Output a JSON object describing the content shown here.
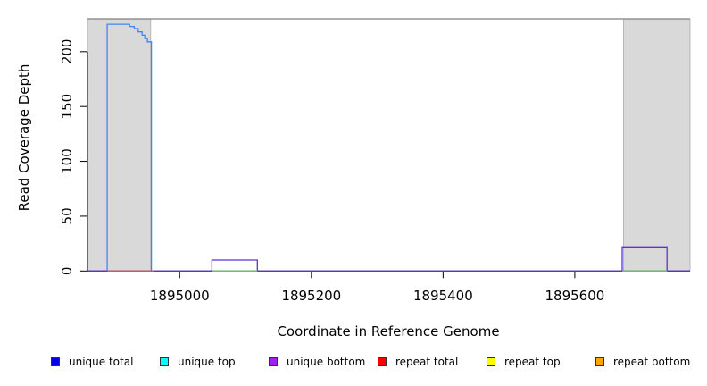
{
  "figure": {
    "ylabel": "Read Coverage Depth",
    "xlabel": "Coordinate in Reference Genome"
  },
  "legend": {
    "items": [
      {
        "label": "unique total",
        "color": "#0000EE"
      },
      {
        "label": "unique top",
        "color": "#00FFFF"
      },
      {
        "label": "unique bottom",
        "color": "#A020F0"
      },
      {
        "label": "repeat total",
        "color": "#FF0000"
      },
      {
        "label": "repeat top",
        "color": "#FFFF00"
      },
      {
        "label": "repeat bottom",
        "color": "#FFA500"
      }
    ]
  },
  "chart_data": {
    "type": "line",
    "title": "",
    "xlabel": "Coordinate in Reference Genome",
    "ylabel": "Read Coverage Depth",
    "xlim": [
      1894860,
      1895775
    ],
    "ylim": [
      0,
      230
    ],
    "x_ticks": [
      1895000,
      1895200,
      1895400,
      1895600
    ],
    "y_ticks": [
      0,
      50,
      100,
      150,
      200
    ],
    "grid": false,
    "legend_position": "bottom",
    "axis_color": "#000000",
    "shaded_regions": [
      {
        "x_start": 1894860,
        "x_end": 1894956,
        "fill": "#D9D9D9",
        "border": "#ADADAD"
      },
      {
        "x_start": 1895674,
        "x_end": 1895775,
        "fill": "#D9D9D9",
        "border": "#ADADAD"
      }
    ],
    "reference_line": {
      "y": 230,
      "color": "#808080"
    },
    "series": [
      {
        "name": "unique total",
        "color": "#4285F0",
        "segments": [
          [
            [
              1894890,
              0
            ],
            [
              1894890,
              225
            ],
            [
              1894924,
              225
            ],
            [
              1894924,
              223
            ],
            [
              1894931,
              223
            ],
            [
              1894931,
              221
            ],
            [
              1894937,
              221
            ],
            [
              1894937,
              218
            ],
            [
              1894943,
              218
            ],
            [
              1894943,
              215
            ],
            [
              1894947,
              215
            ],
            [
              1894947,
              212
            ],
            [
              1894951,
              212
            ],
            [
              1894951,
              209
            ],
            [
              1894957,
              209
            ],
            [
              1894957,
              0
            ]
          ]
        ]
      },
      {
        "name": "unique bottom",
        "color": "#5B2FE0",
        "segments": [
          [
            [
              1894860,
              0
            ],
            [
              1895049,
              0
            ],
            [
              1895049,
              10
            ],
            [
              1895118,
              10
            ],
            [
              1895118,
              0
            ],
            [
              1895672,
              0
            ],
            [
              1895672,
              22
            ],
            [
              1895740,
              22
            ],
            [
              1895740,
              0
            ],
            [
              1895775,
              0
            ]
          ]
        ]
      },
      {
        "name": "unique top",
        "color": "#5FC95F",
        "segments": [
          [
            [
              1895049,
              0
            ],
            [
              1895118,
              0
            ]
          ],
          [
            [
              1895672,
              0
            ],
            [
              1895740,
              0
            ]
          ]
        ]
      },
      {
        "name": "repeat total",
        "color": "#E05050",
        "segments": [
          [
            [
              1894890,
              0
            ],
            [
              1894960,
              0
            ]
          ]
        ]
      }
    ]
  }
}
